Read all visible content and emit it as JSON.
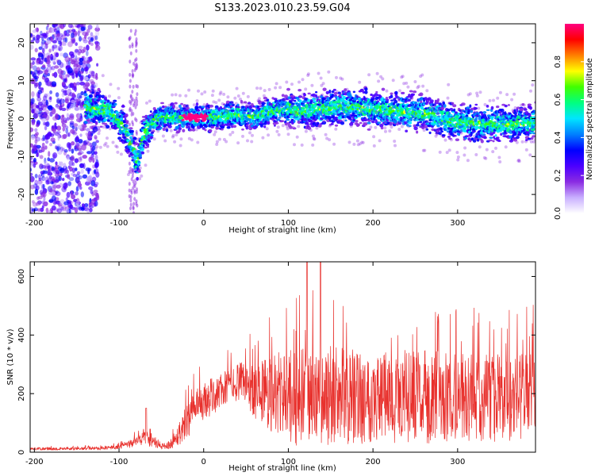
{
  "title": "S133.2023.010.23.59.G04",
  "colors": {
    "snr_line": "#e8302c",
    "colormap": [
      "#ffffff",
      "#c9b0ff",
      "#8a2be2",
      "#4b00ff",
      "#0000ff",
      "#0080ff",
      "#00e5ff",
      "#00ff80",
      "#40ff00",
      "#ffff00",
      "#ff8000",
      "#ff0000",
      "#ff0080"
    ]
  },
  "chart_data": [
    {
      "type": "heatmap",
      "xlabel": "Height of straight line (km)",
      "ylabel": "Frequency (Hz)",
      "xlim": [
        -205,
        392
      ],
      "ylim": [
        -25,
        25
      ],
      "xticks": [
        -200,
        -100,
        0,
        100,
        200,
        300
      ],
      "yticks": [
        -20,
        -10,
        0,
        10,
        20
      ],
      "colorbar": {
        "label": "Normalized spectral amplitude",
        "range": [
          0.0,
          1.0
        ],
        "ticks": [
          0.0,
          0.2,
          0.4,
          0.6,
          0.8
        ]
      },
      "ridge": {
        "x": [
          -205,
          -140,
          -110,
          -95,
          -85,
          -78,
          -72,
          -65,
          -55,
          -40,
          -20,
          0,
          20,
          40,
          60,
          80,
          100,
          120,
          150,
          180,
          200,
          230,
          260,
          280,
          300,
          330,
          360,
          392
        ],
        "y": [
          0,
          3,
          2,
          -2,
          -7,
          -12,
          -5,
          -2,
          0,
          0.5,
          0.2,
          0.3,
          0.5,
          1,
          0.5,
          2,
          2.5,
          2,
          3,
          3,
          2.5,
          2,
          1.5,
          0,
          -1,
          -1.5,
          -1.5,
          -1
        ]
      }
    },
    {
      "type": "line",
      "xlabel": "Height of straight line (km)",
      "ylabel": "SNR (10 * v/v)",
      "xlim": [
        -205,
        392
      ],
      "ylim": [
        0,
        650
      ],
      "xticks": [
        -200,
        -100,
        0,
        100,
        200,
        300
      ],
      "yticks": [
        0,
        200,
        400,
        600
      ],
      "envelope": {
        "x": [
          -205,
          -150,
          -120,
          -100,
          -80,
          -70,
          -60,
          -50,
          -40,
          -30,
          -20,
          -10,
          0,
          10,
          20,
          30,
          40,
          50,
          60,
          70,
          80,
          90,
          100,
          120,
          140,
          160,
          200,
          250,
          300,
          350,
          392
        ],
        "mean": [
          12,
          12,
          14,
          18,
          35,
          55,
          40,
          20,
          25,
          60,
          110,
          140,
          170,
          190,
          210,
          225,
          240,
          230,
          215,
          210,
          200,
          200,
          190,
          185,
          185,
          190,
          190,
          190,
          185,
          185,
          190
        ],
        "spread": [
          5,
          5,
          6,
          8,
          18,
          30,
          25,
          10,
          15,
          40,
          60,
          70,
          70,
          65,
          60,
          60,
          65,
          80,
          100,
          120,
          140,
          150,
          160,
          175,
          180,
          170,
          160,
          160,
          155,
          150,
          150
        ]
      },
      "peaks": [
        {
          "x": -68,
          "y": 150
        },
        {
          "x": 122,
          "y": 650
        },
        {
          "x": 138,
          "y": 648
        }
      ]
    }
  ]
}
